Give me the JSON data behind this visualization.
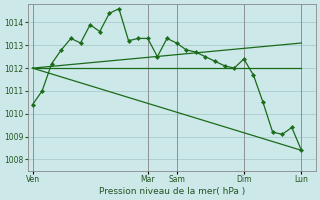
{
  "bg_color": "#cce8e8",
  "grid_color": "#aacccc",
  "line_color": "#1a6b1a",
  "title": "Pression niveau de la mer( hPa )",
  "ylim": [
    1007.5,
    1014.8
  ],
  "yticks": [
    1008,
    1009,
    1010,
    1011,
    1012,
    1013,
    1014
  ],
  "xtick_labels": [
    "Ven",
    "Mar",
    "Sam",
    "Dim",
    "Lun"
  ],
  "xtick_positions": [
    0,
    12,
    15,
    22,
    28
  ],
  "vline_positions": [
    0,
    12,
    15,
    22,
    28
  ],
  "xlim": [
    -0.5,
    29.5
  ],
  "series1": {
    "x": [
      0,
      1,
      2,
      3,
      4,
      5,
      6,
      7,
      8,
      9,
      10,
      11,
      12,
      13,
      14,
      15,
      16,
      17,
      18,
      19,
      20,
      21,
      22,
      23,
      24,
      25,
      26,
      27,
      28
    ],
    "y": [
      1010.4,
      1011.0,
      1012.2,
      1012.8,
      1013.3,
      1013.1,
      1013.9,
      1013.6,
      1014.4,
      1014.6,
      1013.2,
      1013.3,
      1013.3,
      1012.5,
      1013.3,
      1013.1,
      1012.8,
      1012.7,
      1012.5,
      1012.3,
      1012.1,
      1012.0,
      1012.4,
      1011.7,
      1010.5,
      1009.2,
      1009.1,
      1009.4,
      1008.4
    ]
  },
  "series2": {
    "x": [
      0,
      28
    ],
    "y": [
      1012.0,
      1012.0
    ]
  },
  "series3": {
    "x": [
      0,
      28
    ],
    "y": [
      1012.0,
      1013.1
    ]
  },
  "series4": {
    "x": [
      0,
      28
    ],
    "y": [
      1012.0,
      1008.4
    ]
  }
}
